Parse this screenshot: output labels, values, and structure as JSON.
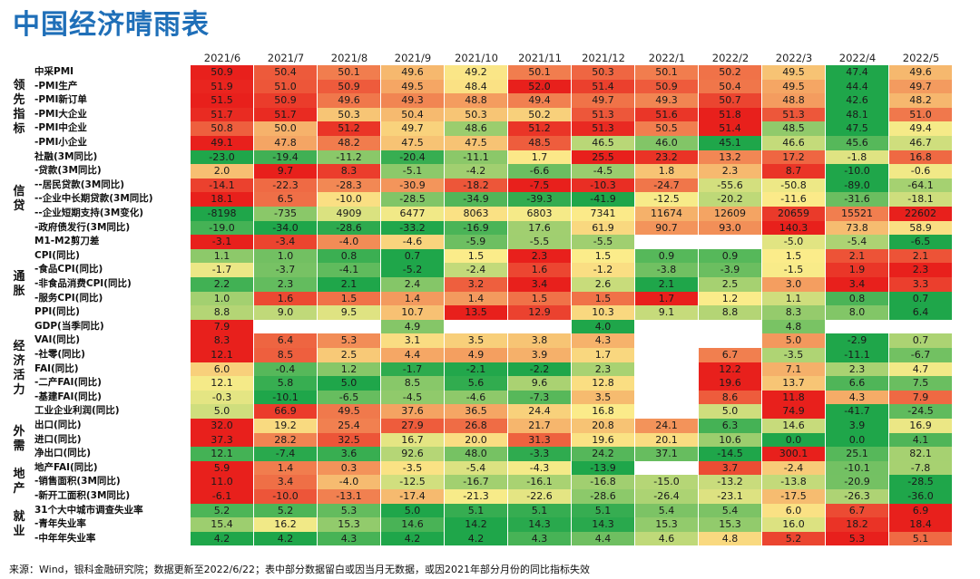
{
  "title": "中国经济晴雨表",
  "footer": "来源：Wind，银科金融研究院；数据更新至2022/6/22；表中部分数据留白或因当月无数据，或因2021年部分月份的同比指标失效",
  "chart_data": {
    "type": "table",
    "columns": [
      "2021/6",
      "2021/7",
      "2021/8",
      "2021/9",
      "2021/10",
      "2021/11",
      "2021/12",
      "2022/1",
      "2022/2",
      "2022/3",
      "2022/4",
      "2022/5"
    ],
    "groups": [
      {
        "label": "领先指标",
        "rows": [
          0,
          5
        ]
      },
      {
        "label": "信贷",
        "rows": [
          6,
          12
        ]
      },
      {
        "label": "通胀",
        "rows": [
          13,
          17
        ]
      },
      {
        "label": "经济活力",
        "rows": [
          18,
          24
        ]
      },
      {
        "label": "外需",
        "rows": [
          25,
          27
        ]
      },
      {
        "label": "地产",
        "rows": [
          28,
          30
        ]
      },
      {
        "label": "就业",
        "rows": [
          31,
          33
        ]
      }
    ],
    "rows": [
      {
        "label": "中采PMI",
        "values": [
          "50.9",
          "50.4",
          "50.1",
          "49.6",
          "49.2",
          "50.1",
          "50.3",
          "50.1",
          "50.2",
          "49.5",
          "47.4",
          "49.6"
        ]
      },
      {
        "label": "-PMI生产",
        "values": [
          "51.9",
          "51.0",
          "50.9",
          "49.5",
          "48.4",
          "52.0",
          "51.4",
          "50.9",
          "50.4",
          "49.5",
          "44.4",
          "49.7"
        ]
      },
      {
        "label": "-PMI新订单",
        "values": [
          "51.5",
          "50.9",
          "49.6",
          "49.3",
          "48.8",
          "49.4",
          "49.7",
          "49.3",
          "50.7",
          "48.8",
          "42.6",
          "48.2"
        ]
      },
      {
        "label": "-PMI大企业",
        "values": [
          "51.7",
          "51.7",
          "50.3",
          "50.4",
          "50.3",
          "50.2",
          "51.3",
          "51.6",
          "51.8",
          "51.3",
          "48.1",
          "51.0"
        ]
      },
      {
        "label": "-PMI中企业",
        "values": [
          "50.8",
          "50.0",
          "51.2",
          "49.7",
          "48.6",
          "51.2",
          "51.3",
          "50.5",
          "51.4",
          "48.5",
          "47.5",
          "49.4"
        ]
      },
      {
        "label": "-PMI小企业",
        "values": [
          "49.1",
          "47.8",
          "48.2",
          "47.5",
          "47.5",
          "48.5",
          "46.5",
          "46.0",
          "45.1",
          "46.6",
          "45.6",
          "46.7"
        ]
      },
      {
        "label": "社融(3M同比)",
        "values": [
          "-23.0",
          "-19.4",
          "-11.2",
          "-20.4",
          "-11.1",
          "1.7",
          "25.5",
          "23.2",
          "13.2",
          "17.2",
          "-1.8",
          "16.8"
        ]
      },
      {
        "label": "-贷款(3M同比)",
        "values": [
          "2.0",
          "9.7",
          "8.3",
          "-5.1",
          "-4.2",
          "-6.6",
          "-4.5",
          "1.8",
          "2.3",
          "8.7",
          "-10.0",
          "-0.6"
        ]
      },
      {
        "label": "--居民贷款(3M同比)",
        "values": [
          "-14.1",
          "-22.3",
          "-28.3",
          "-30.9",
          "-18.2",
          "-7.5",
          "-10.3",
          "-24.7",
          "-55.6",
          "-50.8",
          "-89.0",
          "-64.1"
        ]
      },
      {
        "label": "--企业中长期贷款(3M同比)",
        "values": [
          "18.1",
          "6.5",
          "-10.0",
          "-28.5",
          "-34.9",
          "-39.3",
          "-41.9",
          "-12.5",
          "-20.2",
          "-11.6",
          "-31.6",
          "-18.1"
        ]
      },
      {
        "label": "--企业短期支持(3M变化)",
        "values": [
          "-8198",
          "-735",
          "4909",
          "6477",
          "8063",
          "6803",
          "7341",
          "11674",
          "12609",
          "20659",
          "15521",
          "22602"
        ]
      },
      {
        "label": "-政府债发行(3M同比)",
        "values": [
          "-19.0",
          "-34.0",
          "-28.6",
          "-33.2",
          "-16.9",
          "17.6",
          "61.9",
          "90.7",
          "93.0",
          "140.3",
          "73.8",
          "58.9"
        ]
      },
      {
        "label": "M1-M2剪刀差",
        "values": [
          "-3.1",
          "-3.4",
          "-4.0",
          "-4.6",
          "-5.9",
          "-5.5",
          "-5.5",
          "",
          "",
          "-5.0",
          "-5.4",
          "-6.5"
        ]
      },
      {
        "label": "CPI(同比)",
        "values": [
          "1.1",
          "1.0",
          "0.8",
          "0.7",
          "1.5",
          "2.3",
          "1.5",
          "0.9",
          "0.9",
          "1.5",
          "2.1",
          "2.1"
        ]
      },
      {
        "label": "-食品CPI(同比)",
        "values": [
          "-1.7",
          "-3.7",
          "-4.1",
          "-5.2",
          "-2.4",
          "1.6",
          "-1.2",
          "-3.8",
          "-3.9",
          "-1.5",
          "1.9",
          "2.3"
        ]
      },
      {
        "label": "-非食品消费CPI(同比)",
        "values": [
          "2.2",
          "2.3",
          "2.1",
          "2.4",
          "3.2",
          "3.4",
          "2.6",
          "2.1",
          "2.5",
          "3.0",
          "3.4",
          "3.3"
        ]
      },
      {
        "label": "-服务CPI(同比)",
        "values": [
          "1.0",
          "1.6",
          "1.5",
          "1.4",
          "1.4",
          "1.5",
          "1.5",
          "1.7",
          "1.2",
          "1.1",
          "0.8",
          "0.7"
        ]
      },
      {
        "label": "PPI(同比)",
        "values": [
          "8.8",
          "9.0",
          "9.5",
          "10.7",
          "13.5",
          "12.9",
          "10.3",
          "9.1",
          "8.8",
          "8.3",
          "8.0",
          "6.4"
        ]
      },
      {
        "label": "GDP(当季同比)",
        "values": [
          "7.9",
          "",
          "",
          "4.9",
          "",
          "",
          "4.0",
          "",
          "",
          "4.8",
          "",
          ""
        ]
      },
      {
        "label": "VAI(同比)",
        "values": [
          "8.3",
          "6.4",
          "5.3",
          "3.1",
          "3.5",
          "3.8",
          "4.3",
          "",
          "",
          "5.0",
          "-2.9",
          "0.7"
        ]
      },
      {
        "label": "-社零(同比)",
        "values": [
          "12.1",
          "8.5",
          "2.5",
          "4.4",
          "4.9",
          "3.9",
          "1.7",
          "",
          "6.7",
          "-3.5",
          "-11.1",
          "-6.7"
        ]
      },
      {
        "label": "FAI(同比)",
        "values": [
          "6.0",
          "-0.4",
          "1.2",
          "-1.7",
          "-2.1",
          "-2.2",
          "2.3",
          "",
          "12.2",
          "7.1",
          "2.3",
          "4.7"
        ]
      },
      {
        "label": "-二产FAI(同比)",
        "values": [
          "12.1",
          "5.8",
          "5.0",
          "8.5",
          "5.6",
          "9.6",
          "12.8",
          "",
          "19.6",
          "13.7",
          "6.6",
          "7.5"
        ]
      },
      {
        "label": "-基建FAI(同比)",
        "values": [
          "-0.3",
          "-10.1",
          "-6.5",
          "-4.5",
          "-4.6",
          "-7.3",
          "3.5",
          "",
          "8.6",
          "11.8",
          "4.3",
          "7.9"
        ]
      },
      {
        "label": "工业企业利润(同比)",
        "values": [
          "5.0",
          "66.9",
          "49.5",
          "37.6",
          "36.5",
          "24.4",
          "16.8",
          "",
          "5.0",
          "74.9",
          "-41.7",
          "-24.5"
        ]
      },
      {
        "label": "出口(同比)",
        "values": [
          "32.0",
          "19.2",
          "25.4",
          "27.9",
          "26.8",
          "21.7",
          "20.8",
          "24.1",
          "6.3",
          "14.6",
          "3.9",
          "16.9"
        ]
      },
      {
        "label": "进口(同比)",
        "values": [
          "37.3",
          "28.2",
          "32.5",
          "16.7",
          "20.0",
          "31.3",
          "19.6",
          "20.1",
          "10.6",
          "0.0",
          "0.0",
          "4.1"
        ]
      },
      {
        "label": "净出口(同比)",
        "values": [
          "12.1",
          "-7.4",
          "3.6",
          "92.6",
          "48.0",
          "-3.3",
          "24.2",
          "37.1",
          "-14.5",
          "300.1",
          "25.1",
          "82.1"
        ]
      },
      {
        "label": "地产FAI(同比)",
        "values": [
          "5.9",
          "1.4",
          "0.3",
          "-3.5",
          "-5.4",
          "-4.3",
          "-13.9",
          "",
          "3.7",
          "-2.4",
          "-10.1",
          "-7.8"
        ]
      },
      {
        "label": "-销售面积(3M同比)",
        "values": [
          "11.0",
          "3.4",
          "-4.0",
          "-12.5",
          "-16.7",
          "-16.1",
          "-16.8",
          "-15.0",
          "-13.2",
          "-13.8",
          "-20.9",
          "-28.5"
        ]
      },
      {
        "label": "-新开工面积(3M同比)",
        "values": [
          "-6.1",
          "-10.0",
          "-13.1",
          "-17.4",
          "-21.3",
          "-22.6",
          "-28.6",
          "-26.4",
          "-23.1",
          "-17.5",
          "-26.3",
          "-36.0"
        ]
      },
      {
        "label": "31个大中城市调查失业率",
        "values": [
          "5.2",
          "5.2",
          "5.3",
          "5.0",
          "5.1",
          "5.1",
          "5.1",
          "5.4",
          "5.4",
          "6.0",
          "6.7",
          "6.9"
        ]
      },
      {
        "label": "-青年失业率",
        "values": [
          "15.4",
          "16.2",
          "15.3",
          "14.6",
          "14.2",
          "14.3",
          "14.3",
          "15.3",
          "15.3",
          "16.0",
          "18.2",
          "18.4"
        ]
      },
      {
        "label": "-中年年失业率",
        "values": [
          "4.2",
          "4.2",
          "4.3",
          "4.2",
          "4.2",
          "4.3",
          "4.4",
          "4.6",
          "4.8",
          "5.2",
          "5.3",
          "5.1"
        ]
      }
    ],
    "colors": {
      "low": "#1fa64a",
      "mid": "#fbec8a",
      "high": "#e8201c"
    }
  }
}
